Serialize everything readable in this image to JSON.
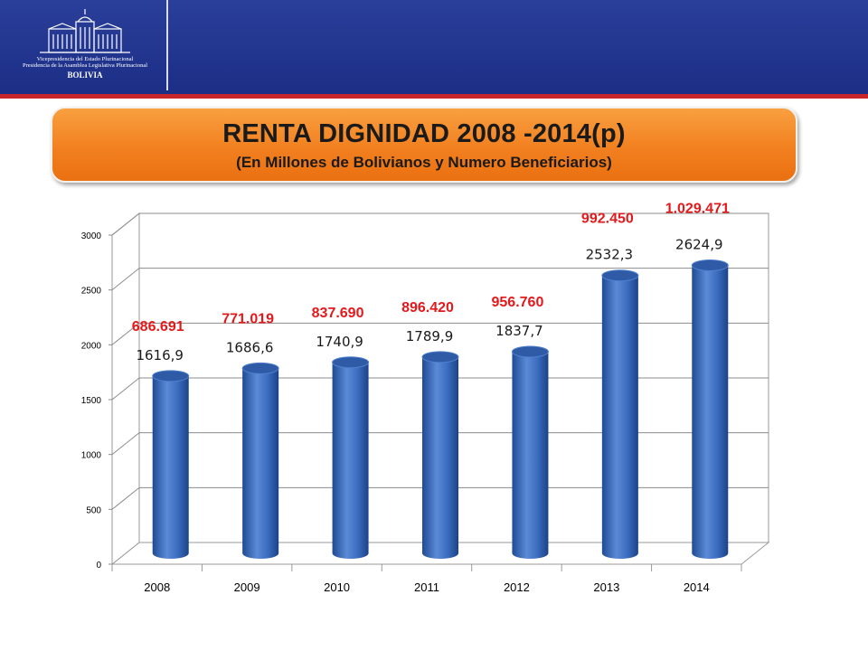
{
  "header": {
    "logo_line1": "Vicepresidencia del Estado Plurinacional",
    "logo_line2": "Presidencia de la Asamblea Legislativa Plurinacional",
    "logo_line3": "BOLIVIA"
  },
  "banner": {
    "title": "RENTA DIGNIDAD 2008 -2014(p)",
    "subtitle": "(En Millones de Bolivianos y Numero Beneficiarios)"
  },
  "colors": {
    "header": "#1f3288",
    "accent_red": "#e3191c",
    "banner_orange": "#f28020",
    "bar_blue": "#3c6fc0"
  },
  "chart_data": {
    "type": "bar",
    "categories": [
      "2008",
      "2009",
      "2010",
      "2011",
      "2012",
      "2013",
      "2014"
    ],
    "values": [
      1616.9,
      1686.6,
      1740.9,
      1789.9,
      1837.7,
      2532.3,
      2624.9
    ],
    "value_labels": [
      "1616,9",
      "1686,6",
      "1740,9",
      "1789,9",
      "1837,7",
      "2532,3",
      "2624,9"
    ],
    "beneficiaries_labels": [
      "686.691",
      "771.019",
      "837.690",
      "896.420",
      "956.760",
      "992.450",
      "1.029.471"
    ],
    "y_ticks": [
      0,
      500,
      1000,
      1500,
      2000,
      2500,
      3000
    ],
    "y_tick_labels": [
      "0",
      "500",
      "1000",
      "1500",
      "2000",
      "2500",
      "3000"
    ],
    "ylim": [
      0,
      3000
    ],
    "grid": true,
    "style": "3d-cylinder"
  }
}
